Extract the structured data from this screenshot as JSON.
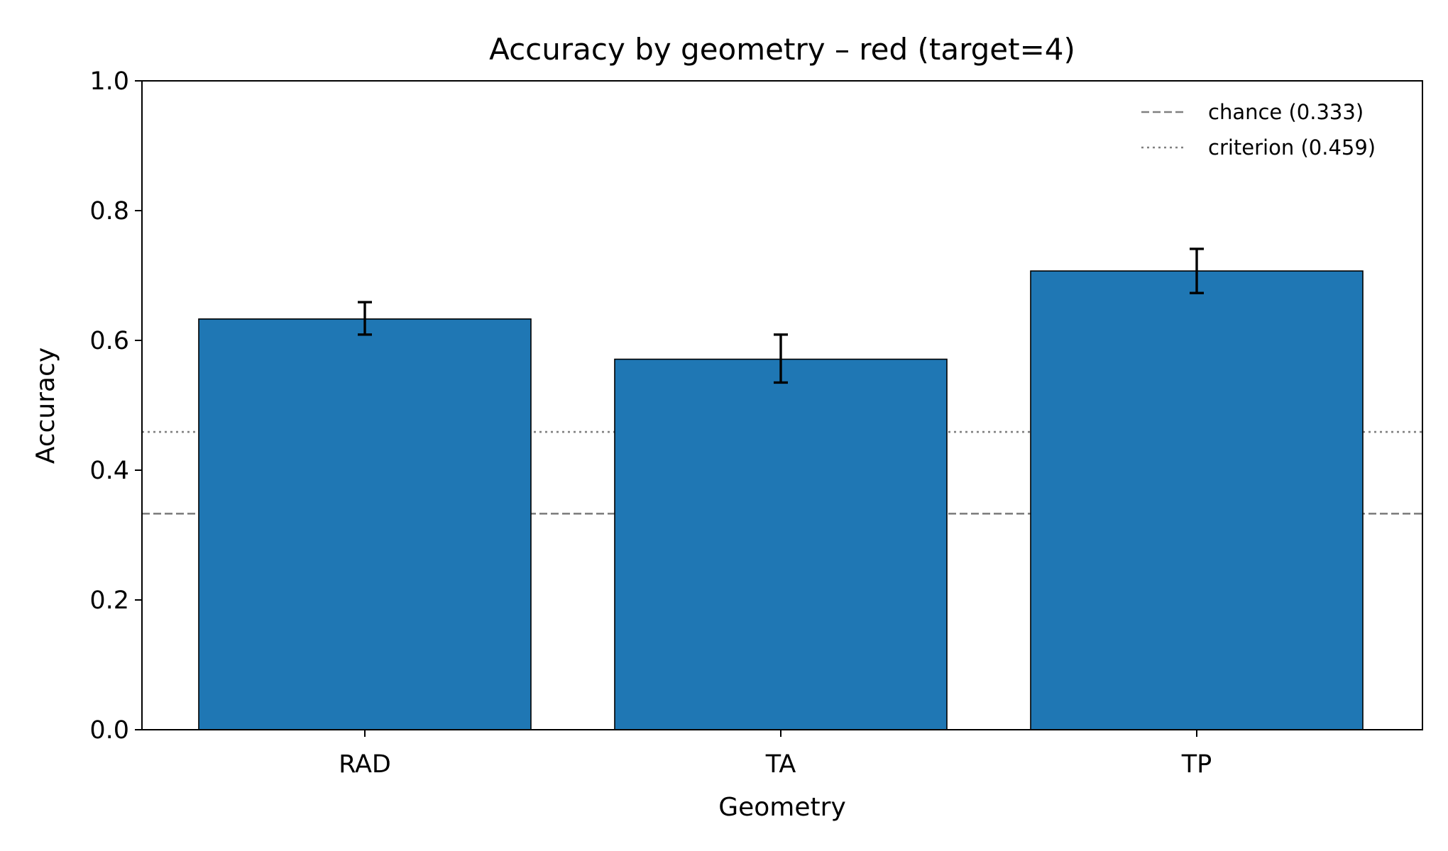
{
  "chart_data": {
    "type": "bar",
    "title": "Accuracy by geometry – red (target=4)",
    "xlabel": "Geometry",
    "ylabel": "Accuracy",
    "categories": [
      "RAD",
      "TA",
      "TP"
    ],
    "values": [
      0.633,
      0.571,
      0.707
    ],
    "error_low": [
      0.609,
      0.535,
      0.673
    ],
    "error_high": [
      0.659,
      0.609,
      0.741
    ],
    "ylim": [
      0,
      1.0
    ],
    "yticks": [
      "0.0",
      "0.2",
      "0.4",
      "0.6",
      "0.8",
      "1.0"
    ],
    "bar_color": "#1f77b4",
    "reference_lines": [
      {
        "label": "chance (0.333)",
        "value": 0.333,
        "style": "dashed",
        "color": "#808080"
      },
      {
        "label": "criterion (0.459)",
        "value": 0.459,
        "style": "dotted",
        "color": "#808080"
      }
    ],
    "legend_position": "top-right",
    "grid": false
  }
}
